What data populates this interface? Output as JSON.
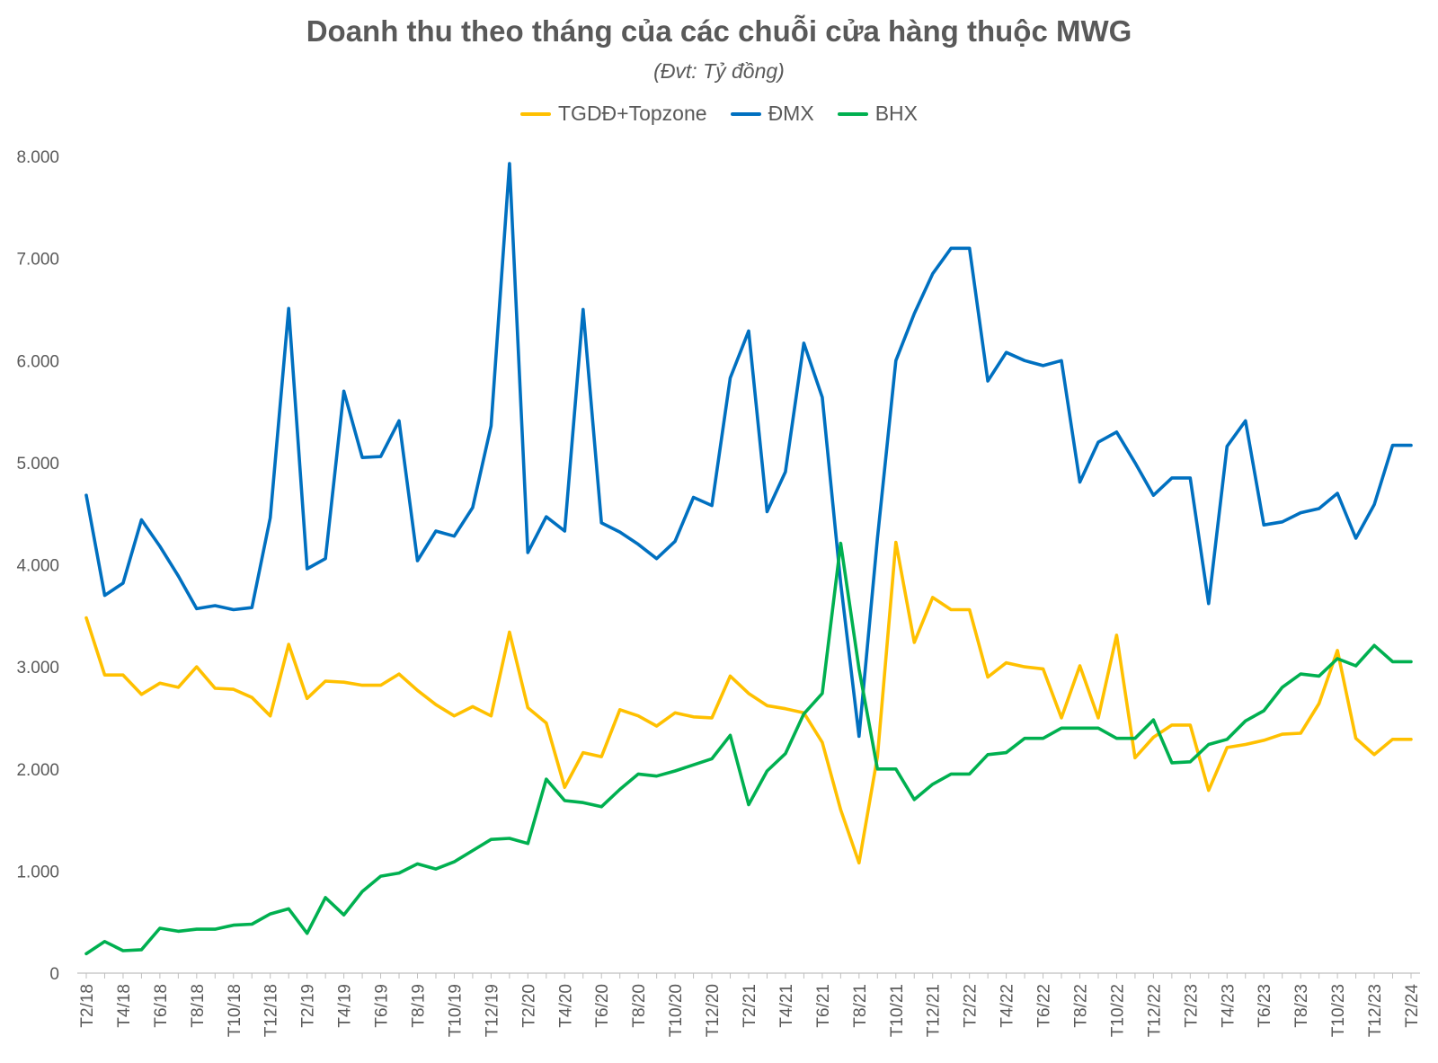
{
  "chart_data": {
    "type": "line",
    "title": "Doanh thu theo tháng của các chuỗi cửa hàng thuộc MWG",
    "subtitle": "(Đvt: Tỷ đồng)",
    "ylim": [
      0,
      8000
    ],
    "yticks": [
      0,
      1000,
      2000,
      3000,
      4000,
      5000,
      6000,
      7000,
      8000
    ],
    "ytick_labels": [
      "0",
      "1.000",
      "2.000",
      "3.000",
      "4.000",
      "5.000",
      "6.000",
      "7.000",
      "8.000"
    ],
    "grid": false,
    "legend_position": "top-center",
    "categories": [
      "T2/18",
      "T3/18",
      "T4/18",
      "T5/18",
      "T6/18",
      "T7/18",
      "T8/18",
      "T9/18",
      "T10/18",
      "T11/18",
      "T12/18",
      "T1/19",
      "T2/19",
      "T3/19",
      "T4/19",
      "T5/19",
      "T6/19",
      "T7/19",
      "T8/19",
      "T9/19",
      "T10/19",
      "T11/19",
      "T12/19",
      "T1/20",
      "T2/20",
      "T3/20",
      "T4/20",
      "T5/20",
      "T6/20",
      "T7/20",
      "T8/20",
      "T9/20",
      "T10/20",
      "T11/20",
      "T12/20",
      "T1/21",
      "T2/21",
      "T3/21",
      "T4/21",
      "T5/21",
      "T6/21",
      "T7/21",
      "T8/21",
      "T9/21",
      "T10/21",
      "T11/21",
      "T12/21",
      "T1/22",
      "T2/22",
      "T3/22",
      "T4/22",
      "T5/22",
      "T6/22",
      "T7/22",
      "T8/22",
      "T9/22",
      "T10/22",
      "T11/22",
      "T12/22",
      "T1/23",
      "T2/23",
      "T3/23",
      "T4/23",
      "T5/23",
      "T6/23",
      "T7/23",
      "T8/23",
      "T9/23",
      "T10/23",
      "T11/23",
      "T12/23",
      "T1/24",
      "T2/24"
    ],
    "shown_tick_labels": [
      "T2/18",
      "T4/18",
      "T6/18",
      "T8/18",
      "T10/18",
      "T12/18",
      "T2/19",
      "T4/19",
      "T6/19",
      "T8/19",
      "T10/19",
      "T12/19",
      "T2/20",
      "T4/20",
      "T6/20",
      "T8/20",
      "T10/20",
      "T12/20",
      "T2/21",
      "T4/21",
      "T6/21",
      "T8/21",
      "T10/21",
      "T12/21",
      "T2/22",
      "T4/22",
      "T6/22",
      "T8/22",
      "T10/22",
      "T12/22",
      "T2/23",
      "T4/23",
      "T6/23",
      "T8/23",
      "T10/23",
      "T12/23",
      "T2/24"
    ],
    "series": [
      {
        "name": "TGDĐ+Topzone",
        "color": "#FFC000",
        "values": [
          3480,
          2920,
          2920,
          2730,
          2840,
          2800,
          3000,
          2790,
          2780,
          2700,
          2520,
          3220,
          2690,
          2860,
          2850,
          2820,
          2820,
          2930,
          2770,
          2630,
          2520,
          2610,
          2520,
          3340,
          2600,
          2450,
          1820,
          2160,
          2120,
          2580,
          2520,
          2420,
          2550,
          2510,
          2500,
          2910,
          2740,
          2620,
          2590,
          2550,
          2260,
          1600,
          1080,
          2120,
          4220,
          3240,
          3680,
          3560,
          3560,
          2900,
          3040,
          3000,
          2980,
          2500,
          3010,
          2500,
          3310,
          2110,
          2310,
          2430,
          2430,
          1790,
          2210,
          2240,
          2280,
          2340,
          2350,
          2640,
          3160,
          2300,
          2140,
          2290,
          2290
        ]
      },
      {
        "name": "ĐMX",
        "color": "#0070C0",
        "values": [
          4680,
          3700,
          3820,
          4440,
          4180,
          3890,
          3570,
          3600,
          3560,
          3580,
          4460,
          6510,
          3960,
          4060,
          5700,
          5050,
          5060,
          5410,
          4040,
          4330,
          4280,
          4560,
          5360,
          7930,
          4120,
          4470,
          4330,
          6500,
          4410,
          4320,
          4200,
          4060,
          4230,
          4660,
          4580,
          5830,
          6290,
          4520,
          4910,
          6170,
          5640,
          3820,
          2320,
          4260,
          6000,
          6460,
          6850,
          7100,
          7100,
          5800,
          6080,
          6000,
          5950,
          6000,
          4810,
          5200,
          5300,
          5000,
          4680,
          4850,
          4850,
          3620,
          5160,
          5410,
          4390,
          4420,
          4510,
          4550,
          4700,
          4260,
          4590,
          5170,
          5170
        ]
      },
      {
        "name": "BHX",
        "color": "#00B050",
        "values": [
          190,
          310,
          220,
          230,
          440,
          410,
          430,
          430,
          470,
          480,
          580,
          630,
          390,
          740,
          570,
          800,
          950,
          980,
          1070,
          1020,
          1090,
          1200,
          1310,
          1320,
          1270,
          1900,
          1690,
          1670,
          1630,
          1800,
          1950,
          1930,
          1980,
          2040,
          2100,
          2330,
          1650,
          1980,
          2150,
          2540,
          2740,
          4210,
          2980,
          2000,
          2000,
          1700,
          1850,
          1950,
          1950,
          2140,
          2160,
          2300,
          2300,
          2400,
          2400,
          2400,
          2300,
          2300,
          2480,
          2060,
          2070,
          2240,
          2290,
          2470,
          2570,
          2800,
          2930,
          2910,
          3080,
          3010,
          3210,
          3050,
          3050
        ]
      }
    ]
  }
}
